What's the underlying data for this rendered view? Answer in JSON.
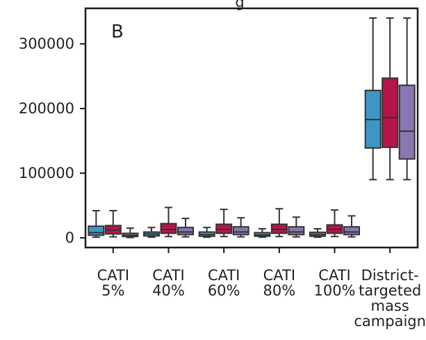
{
  "figure": {
    "panel_label": "B",
    "partial_title_fragment": "g"
  },
  "chart_data": {
    "type": "box",
    "title": "",
    "xlabel": "",
    "ylabel": "",
    "ylim": [
      -15000,
      355000
    ],
    "yticks": [
      0,
      100000,
      200000,
      300000
    ],
    "ytick_labels": [
      "0",
      "100000",
      "200000",
      "300000"
    ],
    "grid": false,
    "legend": "none",
    "categories": [
      "CATI\n5%",
      "CATI\n40%",
      "CATI\n60%",
      "CATI\n80%",
      "CATI\n100%",
      "District-\ntargeted\nmass\ncampaign"
    ],
    "category_labels": [
      [
        "CATI",
        "5%"
      ],
      [
        "CATI",
        "40%"
      ],
      [
        "CATI",
        "60%"
      ],
      [
        "CATI",
        "80%"
      ],
      [
        "CATI",
        "100%"
      ],
      [
        "District-",
        "targeted",
        "mass",
        "campaign"
      ]
    ],
    "series_colors": [
      "#3c97c6",
      "#b5154b",
      "#8b76b3"
    ],
    "series": [
      {
        "name": "",
        "boxes": [
          {
            "whislo": 1000,
            "q1": 4000,
            "med": 8000,
            "q3": 18000,
            "whishi": 42000
          },
          {
            "whislo": 1000,
            "q1": 3000,
            "med": 6000,
            "q3": 9000,
            "whishi": 16000
          },
          {
            "whislo": 1000,
            "q1": 2500,
            "med": 5000,
            "q3": 9000,
            "whishi": 16000
          },
          {
            "whislo": 1000,
            "q1": 2500,
            "med": 4500,
            "q3": 8000,
            "whishi": 14000
          },
          {
            "whislo": 1000,
            "q1": 2500,
            "med": 5000,
            "q3": 8500,
            "whishi": 14000
          },
          {
            "whislo": 90000,
            "q1": 139000,
            "med": 183000,
            "q3": 228000,
            "whishi": 340000
          }
        ]
      },
      {
        "name": "",
        "boxes": [
          {
            "whislo": 1500,
            "q1": 6000,
            "med": 12000,
            "q3": 19000,
            "whishi": 42000
          },
          {
            "whislo": 2000,
            "q1": 7000,
            "med": 13000,
            "q3": 22000,
            "whishi": 47000
          },
          {
            "whislo": 2000,
            "q1": 7000,
            "med": 13000,
            "q3": 21000,
            "whishi": 44000
          },
          {
            "whislo": 2000,
            "q1": 7000,
            "med": 13000,
            "q3": 21000,
            "whishi": 45000
          },
          {
            "whislo": 2000,
            "q1": 7000,
            "med": 13000,
            "q3": 20000,
            "whishi": 43000
          },
          {
            "whislo": 90000,
            "q1": 140000,
            "med": 186000,
            "q3": 247000,
            "whishi": 340000
          }
        ]
      },
      {
        "name": "",
        "boxes": [
          {
            "whislo": 500,
            "q1": 2000,
            "med": 4000,
            "q3": 7000,
            "whishi": 15000
          },
          {
            "whislo": 1500,
            "q1": 5000,
            "med": 9000,
            "q3": 16000,
            "whishi": 30000
          },
          {
            "whislo": 1500,
            "q1": 5000,
            "med": 9000,
            "q3": 17000,
            "whishi": 31000
          },
          {
            "whislo": 1500,
            "q1": 5000,
            "med": 9000,
            "q3": 17000,
            "whishi": 32000
          },
          {
            "whislo": 1500,
            "q1": 5000,
            "med": 9000,
            "q3": 17000,
            "whishi": 34000
          },
          {
            "whislo": 90000,
            "q1": 122000,
            "med": 165000,
            "q3": 236000,
            "whishi": 340000
          }
        ]
      }
    ]
  }
}
